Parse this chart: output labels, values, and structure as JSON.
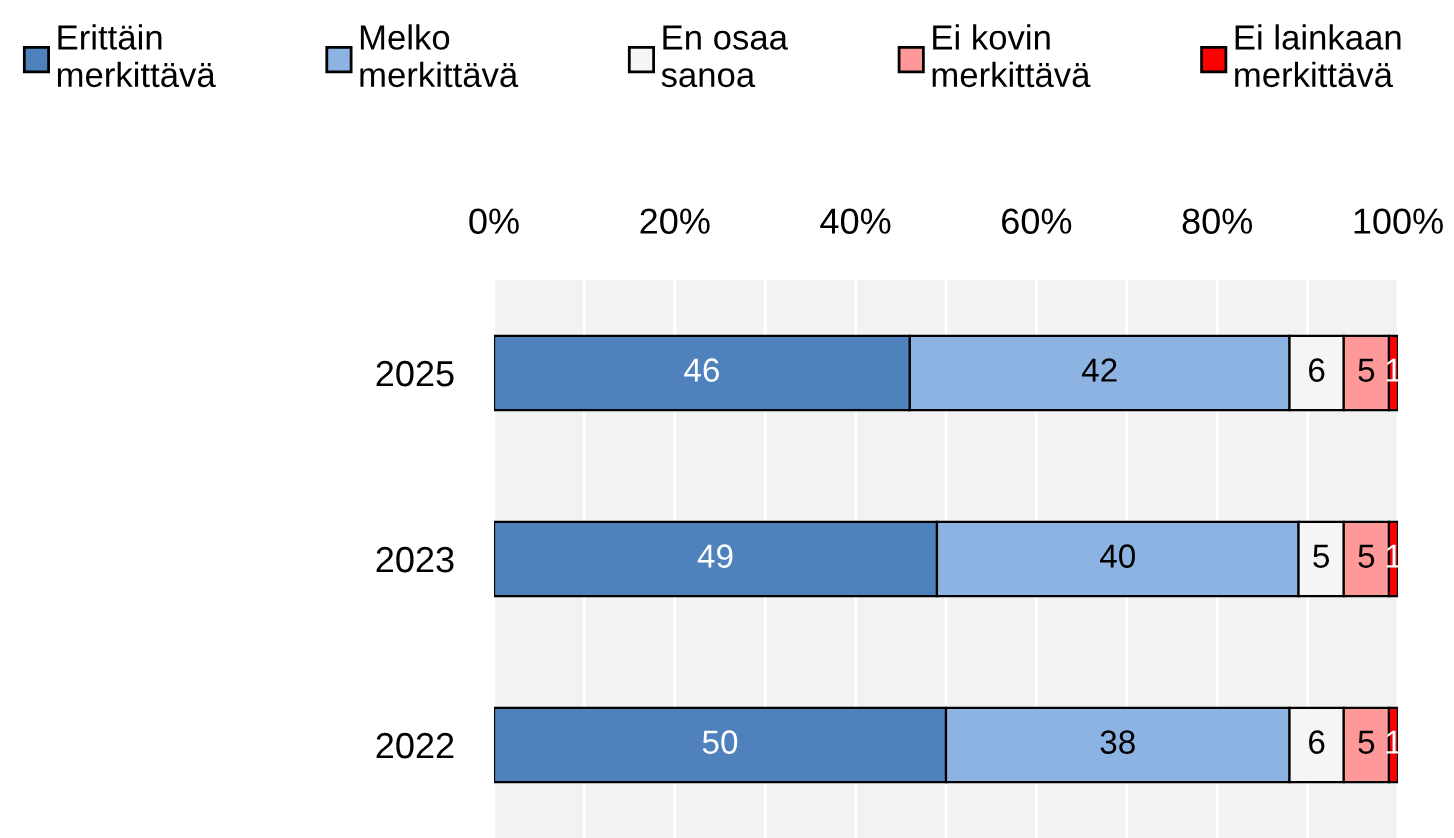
{
  "chart_data": {
    "type": "bar",
    "orientation": "horizontal",
    "stacked": true,
    "data_labels": true,
    "grid": "x",
    "legend": "top",
    "categories": [
      "2025",
      "2023",
      "2022"
    ],
    "series": [
      {
        "name": "Erittäin\nmerkittävä",
        "color": "#4f81bd",
        "values": [
          46,
          49,
          50
        ]
      },
      {
        "name": "Melko\nmerkittävä",
        "color": "#8db3e2",
        "values": [
          42,
          40,
          38
        ]
      },
      {
        "name": "En osaa\nsanoa",
        "color": "#f5f5f5",
        "values": [
          6,
          5,
          6
        ]
      },
      {
        "name": "Ei kovin\nmerkittävä",
        "color": "#ff9999",
        "values": [
          5,
          5,
          5
        ]
      },
      {
        "name": "Ei lainkaan\nmerkittävä",
        "color": "#ff0000",
        "values": [
          1,
          1,
          1
        ]
      }
    ],
    "xlim": [
      0,
      100
    ],
    "xticks": [
      {
        "value": 0,
        "label": "0%"
      },
      {
        "value": 10,
        "label": null
      },
      {
        "value": 20,
        "label": "20%"
      },
      {
        "value": 30,
        "label": null
      },
      {
        "value": 40,
        "label": "40%"
      },
      {
        "value": 50,
        "label": null
      },
      {
        "value": 60,
        "label": "60%"
      },
      {
        "value": 70,
        "label": null
      },
      {
        "value": 80,
        "label": "80%"
      },
      {
        "value": 90,
        "label": null
      },
      {
        "value": 100,
        "label": "100%"
      }
    ]
  }
}
